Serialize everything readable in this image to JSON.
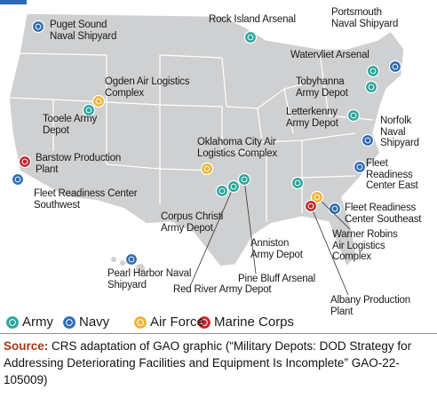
{
  "branches": [
    {
      "name": "Army",
      "color": "#2ba59a",
      "sites": [
        "Rock Island Arsenal",
        "Tooele Army\nDepot",
        "Watervliet Arsenal",
        "Tobyhanna\nArmy Depot",
        "Letterkenny\nArmy Depot",
        "Corpus Christi\nArmy Depot",
        "Anniston\nArmy Depot",
        "Red River Army Depot",
        "Pine Bluff Arsenal"
      ]
    },
    {
      "name": "Navy",
      "color": "#2d6bb3",
      "sites": [
        "Puget Sound\nNaval Shipyard",
        "Portsmouth\nNaval Shipyard",
        "Norfolk\nNaval\nShipyard",
        "Fleet\nReadiness\nCenter East",
        "Fleet Readiness\nCenter Southeast",
        "Fleet Readiness Center\nSouthwest",
        "Pearl Harbor Naval\nShipyard"
      ]
    },
    {
      "name": "Air Force",
      "color": "#eeb43a",
      "sites": [
        "Ogden Air Logistics\nComplex",
        "Oklahoma City Air\nLogistics Complex",
        "Warner Robins\nAir Logistics\nComplex"
      ]
    },
    {
      "name": "Marine Corps",
      "color": "#c0282d",
      "sites": [
        "Barstow Production\nPlant",
        "Albany Production\nPlant"
      ]
    }
  ],
  "source": {
    "label": "Source:",
    "text": "CRS adaptation of GAO graphic (“Military Depots: DOD Strategy for Addressing Deteriorating Facilities and Equipment Is Incomplete” GAO-22-105009)"
  }
}
